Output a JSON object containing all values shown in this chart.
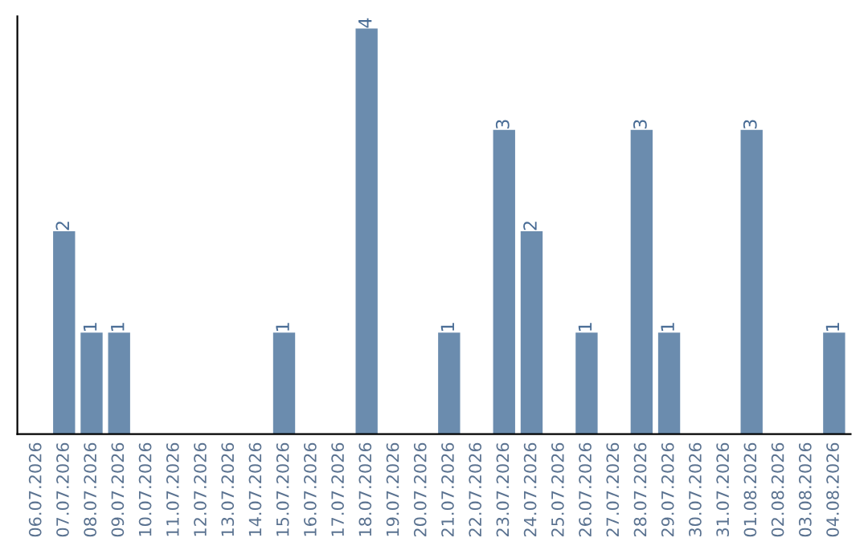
{
  "chart_data": {
    "type": "bar",
    "categories": [
      "06.07.2026",
      "07.07.2026",
      "08.07.2026",
      "09.07.2026",
      "10.07.2026",
      "11.07.2026",
      "12.07.2026",
      "13.07.2026",
      "14.07.2026",
      "15.07.2026",
      "16.07.2026",
      "17.07.2026",
      "18.07.2026",
      "19.07.2026",
      "20.07.2026",
      "21.07.2026",
      "22.07.2026",
      "23.07.2026",
      "24.07.2026",
      "25.07.2026",
      "26.07.2026",
      "27.07.2026",
      "28.07.2026",
      "29.07.2026",
      "30.07.2026",
      "31.07.2026",
      "01.08.2026",
      "02.08.2026",
      "03.08.2026",
      "04.08.2026"
    ],
    "values": [
      0,
      2,
      1,
      1,
      0,
      0,
      0,
      0,
      0,
      1,
      0,
      0,
      4,
      0,
      0,
      1,
      0,
      3,
      2,
      0,
      1,
      0,
      3,
      1,
      0,
      0,
      3,
      0,
      0,
      1
    ],
    "value_labels": [
      null,
      "2",
      "1",
      "1",
      null,
      null,
      null,
      null,
      null,
      "1",
      null,
      null,
      "4",
      null,
      null,
      "1",
      null,
      "3",
      "2",
      null,
      "1",
      null,
      "3",
      "1",
      null,
      null,
      "3",
      null,
      null,
      "1"
    ],
    "color": "#6b8cae",
    "tick_labels": "x",
    "grid": false,
    "legend": false
  }
}
